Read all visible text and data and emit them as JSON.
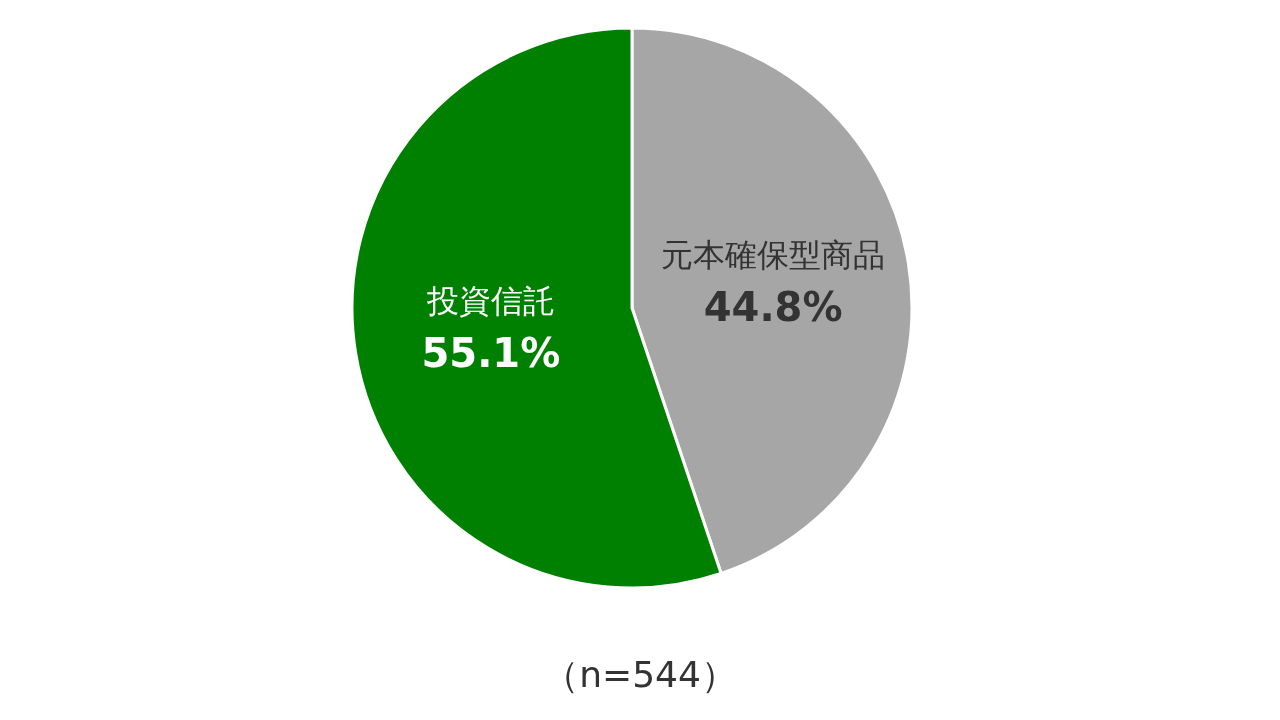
{
  "chart_data": {
    "type": "pie",
    "categories": [
      "元本確保型商品",
      "投資信託"
    ],
    "values": [
      44.8,
      55.1
    ],
    "colors": [
      "#a6a6a6",
      "#008000"
    ],
    "value_labels": [
      "44.8%",
      "55.1%"
    ],
    "annotations": [
      "（n=544）"
    ],
    "legend": false
  }
}
